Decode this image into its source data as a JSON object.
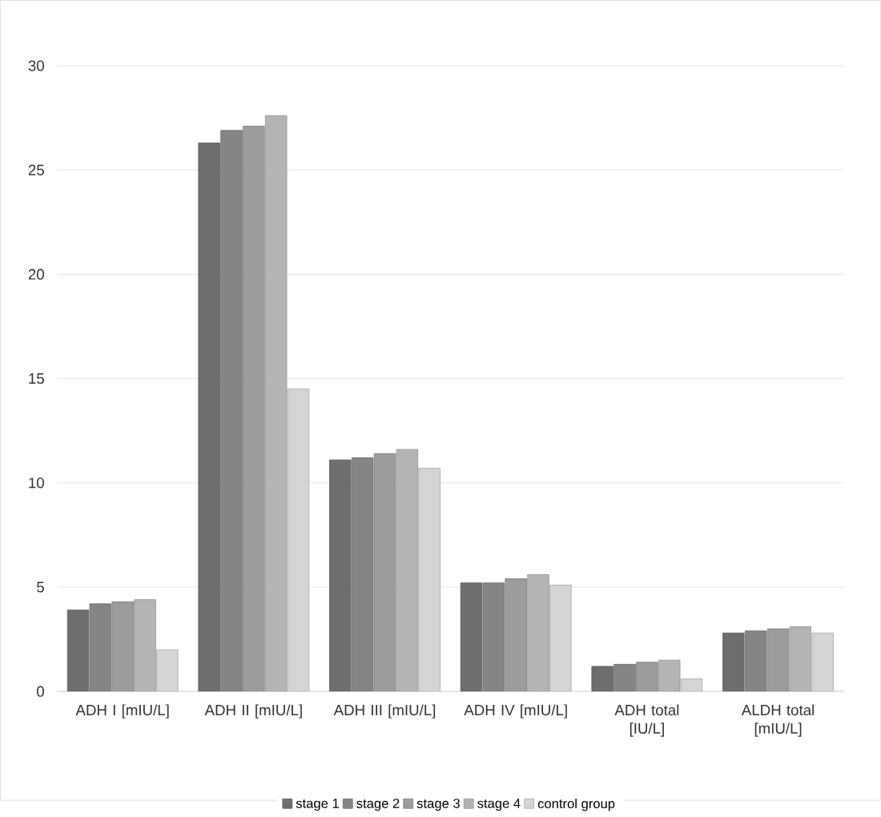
{
  "chart_data": {
    "type": "bar",
    "categories": [
      "ADH I [mIU/L]",
      "ADH II [mIU/L]",
      "ADH III [mIU/L]",
      "ADH IV [mIU/L]",
      "ADH total [IU/L]",
      "ALDH total [mIU/L]"
    ],
    "series": [
      {
        "name": "stage 1",
        "color": "#6e6e6e",
        "values": [
          3.9,
          26.3,
          11.1,
          5.2,
          1.2,
          2.8
        ]
      },
      {
        "name": "stage 2",
        "color": "#858585",
        "values": [
          4.2,
          26.9,
          11.2,
          5.2,
          1.3,
          2.9
        ]
      },
      {
        "name": "stage 3",
        "color": "#9c9c9c",
        "values": [
          4.3,
          27.1,
          11.4,
          5.4,
          1.4,
          3.0
        ]
      },
      {
        "name": "stage 4",
        "color": "#b4b4b4",
        "values": [
          4.4,
          27.6,
          11.6,
          5.6,
          1.5,
          3.1
        ]
      },
      {
        "name": "control group",
        "color": "#d4d4d4",
        "values": [
          2.0,
          14.5,
          10.7,
          5.1,
          0.6,
          2.8
        ]
      }
    ],
    "ylim": [
      0,
      30
    ],
    "yticks": [
      0,
      5,
      10,
      15,
      20,
      25,
      30
    ],
    "grid": "y",
    "legend": "bottom"
  }
}
